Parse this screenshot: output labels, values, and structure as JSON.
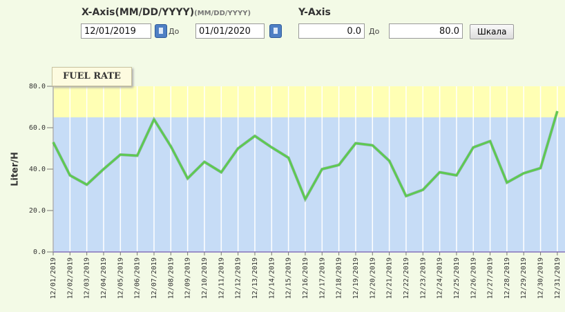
{
  "form": {
    "x_axis_label": "X-Axis(MM/DD/YYYY)",
    "x_axis_hint": "(MM/DD/YYYY)",
    "y_axis_label": "Y-Axis",
    "x_from": "12/01/2019",
    "x_to": "01/01/2020",
    "to_word_1": "До",
    "y_from": "0.0",
    "to_word_2": "До",
    "y_to": "80.0",
    "button": "Шкала"
  },
  "chart_data": {
    "type": "line",
    "title": "FUEL RATE",
    "y_label": "Liter/H",
    "categories": [
      "12/01/2019",
      "12/02/2019",
      "12/03/2019",
      "12/04/2019",
      "12/05/2019",
      "12/06/2019",
      "12/07/2019",
      "12/08/2019",
      "12/09/2019",
      "12/10/2019",
      "12/11/2019",
      "12/12/2019",
      "12/13/2019",
      "12/14/2019",
      "12/15/2019",
      "12/16/2019",
      "12/17/2019",
      "12/18/2019",
      "12/19/2019",
      "12/20/2019",
      "12/21/2019",
      "12/22/2019",
      "12/23/2019",
      "12/24/2019",
      "12/25/2019",
      "12/26/2019",
      "12/27/2019",
      "12/28/2019",
      "12/29/2019",
      "12/30/2019",
      "12/31/2019"
    ],
    "series": [
      {
        "name": "Fuel rate",
        "color": "#5ccc4e",
        "values": [
          53,
          37,
          32.5,
          40,
          47,
          46.5,
          64,
          51,
          35.5,
          43.5,
          38.5,
          50,
          56,
          50.5,
          45.5,
          25.5,
          40,
          42,
          52.5,
          51.5,
          44,
          27,
          30,
          38.5,
          37,
          50.5,
          53.5,
          33.5,
          38,
          40.5,
          68
        ]
      }
    ],
    "bands": [
      {
        "from": 0,
        "to": 65,
        "color": "#c6dcf6"
      },
      {
        "from": 65,
        "to": 80,
        "color": "#ffffb4"
      }
    ],
    "ylim": [
      0,
      80
    ],
    "yticks": [
      {
        "value": 0,
        "label": "0.0"
      },
      {
        "value": 20,
        "label": "20.0"
      },
      {
        "value": 40,
        "label": "40.0"
      },
      {
        "value": 60,
        "label": "60.0"
      },
      {
        "value": 80,
        "label": "80.0"
      }
    ],
    "grid": true
  }
}
